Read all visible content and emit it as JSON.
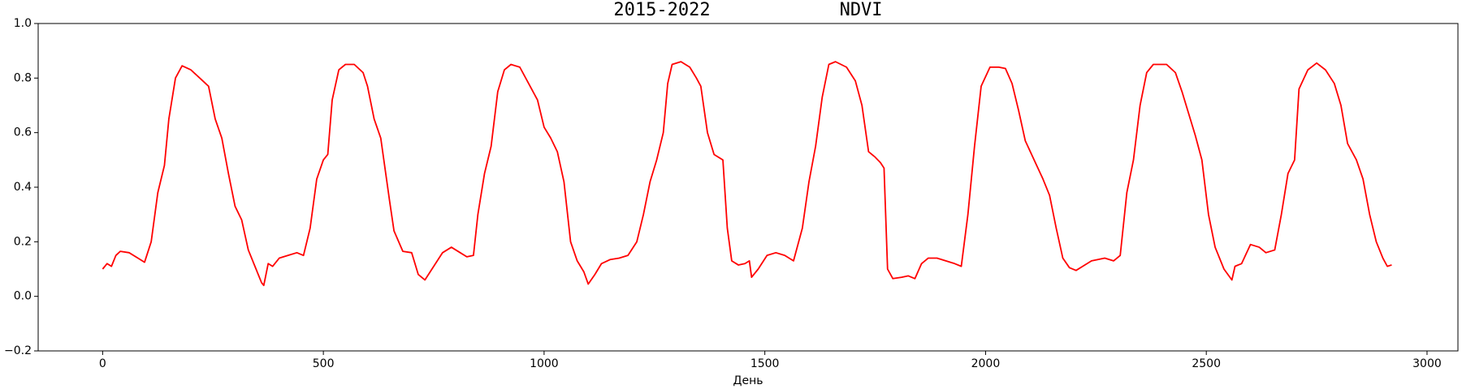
{
  "chart_data": {
    "type": "line",
    "title": "2015-2022            NDVI",
    "x_label": "День",
    "color": "#ff0000",
    "xlim": [
      -146,
      3070
    ],
    "xticks": [
      0,
      500,
      1000,
      1500,
      2000,
      2500,
      3000
    ],
    "ylim": [
      -0.2,
      1.0
    ],
    "yticks": [
      {
        "value": -0.2,
        "label": "−0.2"
      },
      {
        "value": 0.0,
        "label": "0.0"
      },
      {
        "value": 0.2,
        "label": "0.2"
      },
      {
        "value": 0.4,
        "label": "0.4"
      },
      {
        "value": 0.6,
        "label": "0.6"
      },
      {
        "value": 0.8,
        "label": "0.8"
      },
      {
        "value": 1.0,
        "label": "1.0"
      }
    ],
    "x": [
      0,
      10,
      20,
      30,
      40,
      60,
      80,
      95,
      110,
      125,
      140,
      150,
      165,
      180,
      200,
      220,
      240,
      255,
      270,
      285,
      300,
      315,
      330,
      345,
      360,
      365,
      375,
      385,
      400,
      420,
      440,
      455,
      470,
      485,
      500,
      510,
      520,
      535,
      550,
      570,
      590,
      600,
      615,
      630,
      650,
      660,
      680,
      700,
      715,
      730,
      750,
      770,
      790,
      810,
      825,
      840,
      850,
      865,
      880,
      895,
      910,
      925,
      945,
      965,
      985,
      1000,
      1015,
      1030,
      1045,
      1060,
      1075,
      1090,
      1100,
      1115,
      1130,
      1150,
      1170,
      1190,
      1210,
      1225,
      1240,
      1255,
      1270,
      1280,
      1290,
      1310,
      1330,
      1345,
      1355,
      1370,
      1385,
      1395,
      1405,
      1415,
      1425,
      1440,
      1455,
      1465,
      1470,
      1485,
      1505,
      1525,
      1545,
      1565,
      1585,
      1600,
      1615,
      1630,
      1645,
      1660,
      1685,
      1705,
      1720,
      1735,
      1750,
      1762,
      1770,
      1778,
      1790,
      1810,
      1825,
      1840,
      1855,
      1870,
      1890,
      1910,
      1930,
      1945,
      1960,
      1975,
      1990,
      2010,
      2030,
      2045,
      2060,
      2075,
      2090,
      2110,
      2130,
      2145,
      2160,
      2175,
      2190,
      2205,
      2220,
      2240,
      2270,
      2290,
      2305,
      2320,
      2335,
      2350,
      2365,
      2380,
      2410,
      2430,
      2445,
      2460,
      2475,
      2490,
      2505,
      2520,
      2540,
      2558,
      2565,
      2580,
      2600,
      2620,
      2635,
      2655,
      2670,
      2685,
      2700,
      2710,
      2730,
      2750,
      2770,
      2790,
      2805,
      2820,
      2840,
      2855,
      2870,
      2885,
      2900,
      2910,
      2920
    ],
    "values": [
      0.1,
      0.12,
      0.11,
      0.15,
      0.165,
      0.16,
      0.14,
      0.125,
      0.2,
      0.38,
      0.48,
      0.65,
      0.8,
      0.845,
      0.83,
      0.8,
      0.77,
      0.65,
      0.58,
      0.45,
      0.33,
      0.28,
      0.17,
      0.11,
      0.05,
      0.04,
      0.12,
      0.11,
      0.14,
      0.15,
      0.16,
      0.15,
      0.25,
      0.43,
      0.5,
      0.52,
      0.72,
      0.83,
      0.85,
      0.85,
      0.82,
      0.77,
      0.65,
      0.58,
      0.35,
      0.24,
      0.165,
      0.16,
      0.08,
      0.06,
      0.11,
      0.16,
      0.18,
      0.16,
      0.145,
      0.15,
      0.3,
      0.45,
      0.55,
      0.75,
      0.83,
      0.85,
      0.84,
      0.78,
      0.72,
      0.62,
      0.58,
      0.53,
      0.42,
      0.2,
      0.13,
      0.09,
      0.045,
      0.08,
      0.12,
      0.135,
      0.14,
      0.15,
      0.2,
      0.3,
      0.42,
      0.5,
      0.6,
      0.78,
      0.85,
      0.86,
      0.84,
      0.8,
      0.77,
      0.6,
      0.52,
      0.51,
      0.5,
      0.25,
      0.13,
      0.115,
      0.12,
      0.13,
      0.07,
      0.1,
      0.15,
      0.16,
      0.15,
      0.13,
      0.25,
      0.42,
      0.55,
      0.73,
      0.85,
      0.86,
      0.84,
      0.79,
      0.7,
      0.53,
      0.51,
      0.49,
      0.47,
      0.1,
      0.065,
      0.07,
      0.075,
      0.065,
      0.12,
      0.14,
      0.14,
      0.13,
      0.12,
      0.11,
      0.3,
      0.55,
      0.77,
      0.84,
      0.84,
      0.835,
      0.78,
      0.68,
      0.57,
      0.5,
      0.43,
      0.37,
      0.25,
      0.14,
      0.105,
      0.095,
      0.11,
      0.13,
      0.14,
      0.13,
      0.15,
      0.38,
      0.5,
      0.7,
      0.82,
      0.85,
      0.85,
      0.82,
      0.75,
      0.67,
      0.59,
      0.5,
      0.3,
      0.18,
      0.1,
      0.06,
      0.11,
      0.12,
      0.19,
      0.18,
      0.16,
      0.17,
      0.3,
      0.45,
      0.5,
      0.76,
      0.83,
      0.855,
      0.83,
      0.78,
      0.7,
      0.56,
      0.5,
      0.43,
      0.3,
      0.2,
      0.14,
      0.11,
      0.115
    ]
  }
}
